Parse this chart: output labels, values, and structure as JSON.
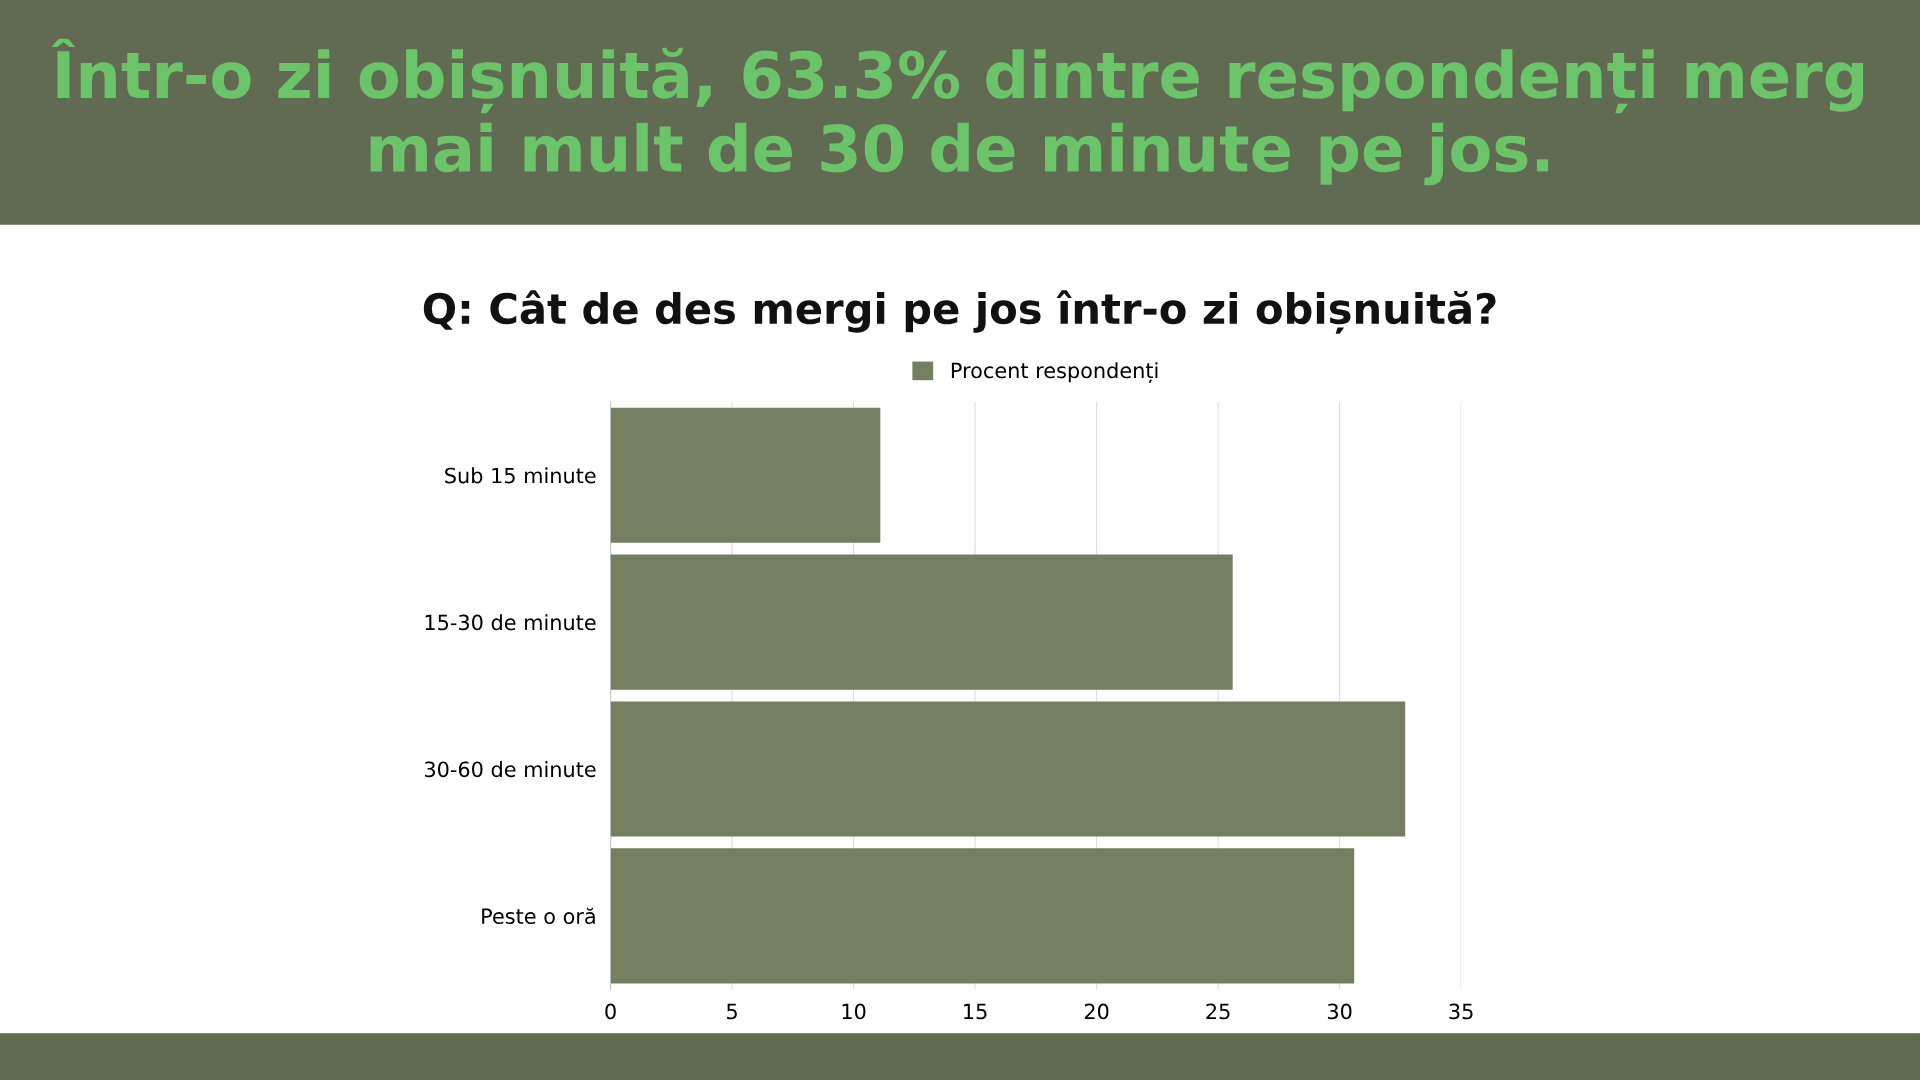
{
  "chart_data": {
    "type": "bar",
    "orientation": "horizontal",
    "title": "Într-o zi obișnuită, 63.3% dintre respondenți merg mai mult de 30 de minute pe jos.",
    "subtitle": "Q: Cât de des mergi pe jos într-o zi obișnuită?",
    "categories": [
      "Sub 15 minute",
      "15-30 de minute",
      "30-60 de minute",
      "Peste o oră"
    ],
    "series": [
      {
        "name": "Procent respondenți",
        "color": "#737f60",
        "values": [
          11.1,
          25.6,
          32.7,
          30.6
        ]
      }
    ],
    "xlim": [
      0,
      35
    ],
    "xticks": [
      0,
      5,
      10,
      15,
      20,
      25,
      30,
      35
    ],
    "grid": "x",
    "legend": "top"
  }
}
